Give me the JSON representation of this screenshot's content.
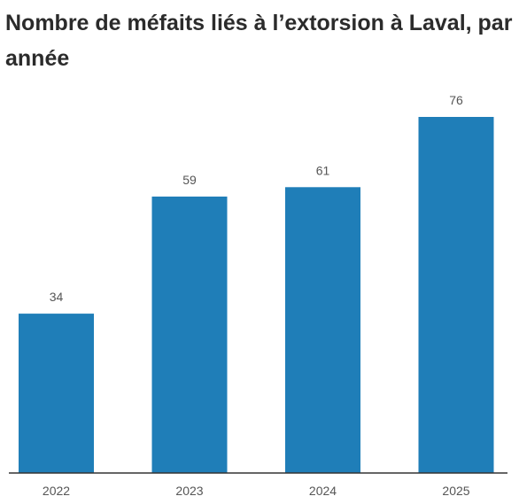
{
  "chart_data": {
    "type": "bar",
    "title": "Nombre de méfaits liés à l’extorsion à Laval, par année",
    "categories": [
      "2022",
      "2023",
      "2024",
      "2025"
    ],
    "values": [
      34,
      59,
      61,
      76
    ],
    "xlabel": "",
    "ylabel": "",
    "ylim": [
      0,
      80
    ],
    "grid": false,
    "legend": "none",
    "data_labels": true,
    "bar_color": "#1f7eb8",
    "baseline_color": "#333333"
  }
}
